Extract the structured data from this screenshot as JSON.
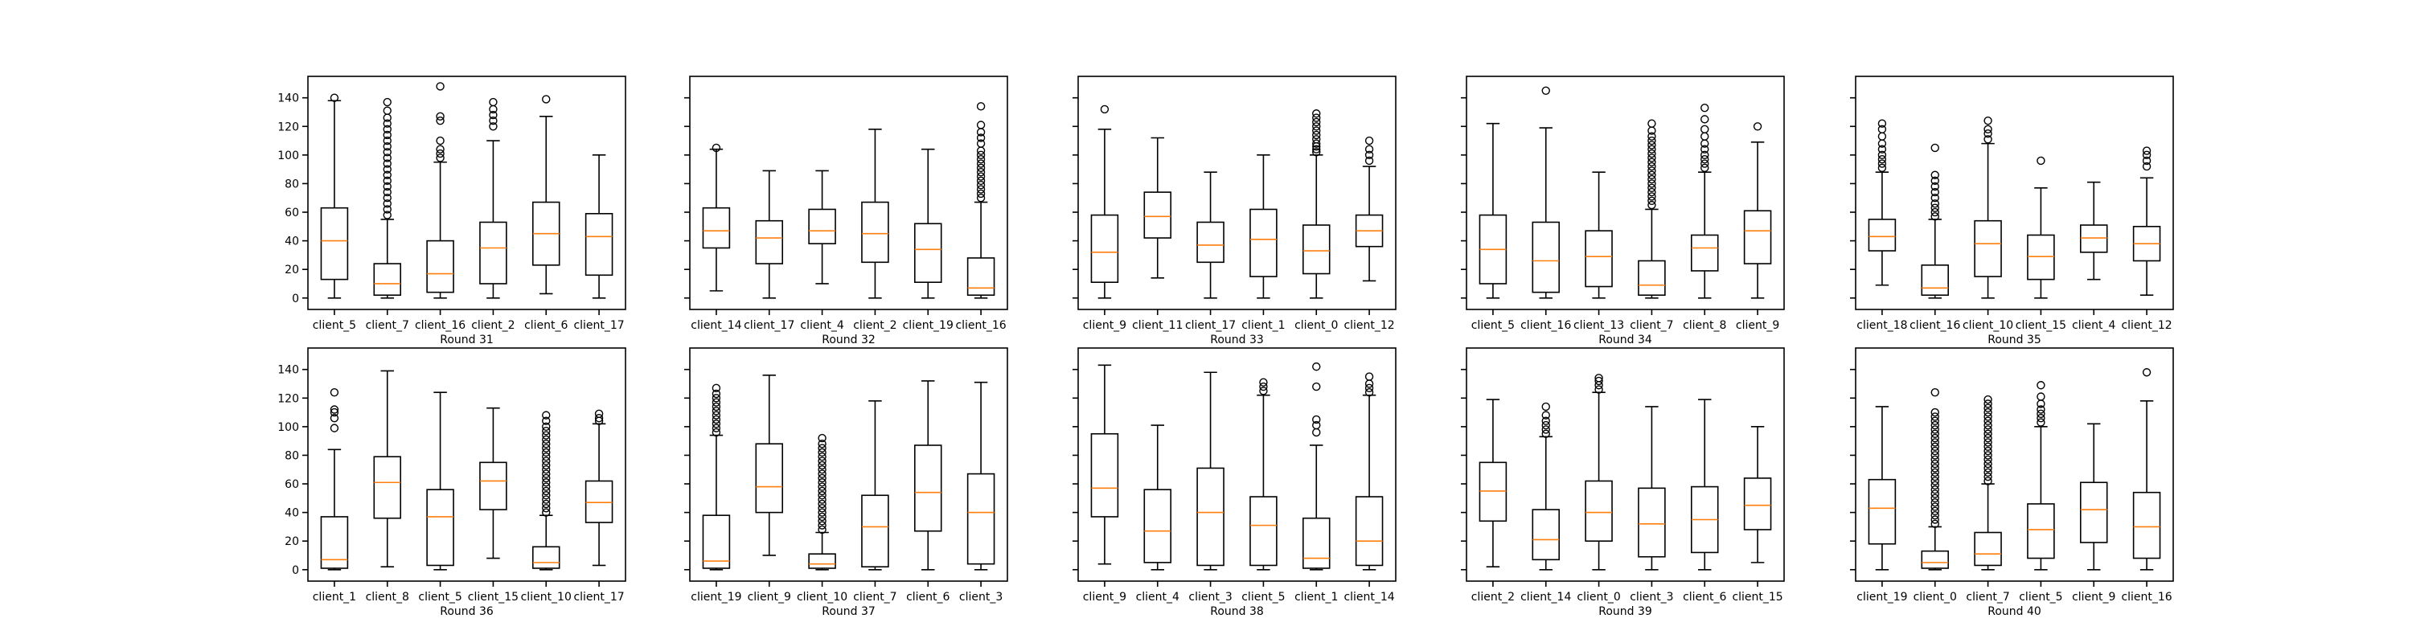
{
  "chart_data": [
    {
      "type": "box",
      "xlabel": "Round 31",
      "ylim": [
        -8,
        155
      ],
      "yticks": [
        0,
        20,
        40,
        60,
        80,
        100,
        120,
        140
      ],
      "show_yticklabels": true,
      "categories": [
        "client_5",
        "client_7",
        "client_16",
        "client_2",
        "client_6",
        "client_17"
      ],
      "boxes": [
        {
          "min": 0,
          "q1": 13,
          "median": 40,
          "q3": 63,
          "max": 138,
          "fliers": [
            140
          ]
        },
        {
          "min": 0,
          "q1": 2,
          "median": 10,
          "q3": 24,
          "max": 55,
          "fliers": [
            58,
            62,
            66,
            70,
            74,
            78,
            82,
            86,
            90,
            94,
            98,
            102,
            106,
            110,
            114,
            118,
            122,
            126,
            131,
            137
          ]
        },
        {
          "min": 0,
          "q1": 4,
          "median": 17,
          "q3": 40,
          "max": 95,
          "fliers": [
            98,
            101,
            104,
            110,
            124,
            127,
            148
          ]
        },
        {
          "min": 0,
          "q1": 10,
          "median": 35,
          "q3": 53,
          "max": 110,
          "fliers": [
            120,
            124,
            128,
            132,
            137
          ]
        },
        {
          "min": 3,
          "q1": 23,
          "median": 45,
          "q3": 67,
          "max": 127,
          "fliers": [
            139
          ]
        },
        {
          "min": 0,
          "q1": 16,
          "median": 43,
          "q3": 59,
          "max": 100,
          "fliers": []
        }
      ]
    },
    {
      "type": "box",
      "xlabel": "Round 32",
      "ylim": [
        -8,
        155
      ],
      "yticks": [
        0,
        20,
        40,
        60,
        80,
        100,
        120,
        140
      ],
      "show_yticklabels": false,
      "categories": [
        "client_14",
        "client_17",
        "client_4",
        "client_2",
        "client_19",
        "client_16"
      ],
      "boxes": [
        {
          "min": 5,
          "q1": 35,
          "median": 47,
          "q3": 63,
          "max": 104,
          "fliers": [
            105
          ]
        },
        {
          "min": 0,
          "q1": 24,
          "median": 42,
          "q3": 54,
          "max": 89,
          "fliers": []
        },
        {
          "min": 10,
          "q1": 38,
          "median": 47,
          "q3": 62,
          "max": 89,
          "fliers": []
        },
        {
          "min": 0,
          "q1": 25,
          "median": 45,
          "q3": 67,
          "max": 118,
          "fliers": []
        },
        {
          "min": 0,
          "q1": 11,
          "median": 34,
          "q3": 52,
          "max": 104,
          "fliers": []
        },
        {
          "min": 0,
          "q1": 2,
          "median": 7,
          "q3": 28,
          "max": 67,
          "fliers": [
            70,
            73,
            76,
            79,
            82,
            85,
            88,
            91,
            94,
            97,
            100,
            103,
            108,
            112,
            116,
            121,
            134
          ]
        }
      ]
    },
    {
      "type": "box",
      "xlabel": "Round 33",
      "ylim": [
        -8,
        155
      ],
      "yticks": [
        0,
        20,
        40,
        60,
        80,
        100,
        120,
        140
      ],
      "show_yticklabels": false,
      "categories": [
        "client_9",
        "client_11",
        "client_17",
        "client_1",
        "client_0",
        "client_12"
      ],
      "boxes": [
        {
          "min": 0,
          "q1": 11,
          "median": 32,
          "q3": 58,
          "max": 118,
          "fliers": [
            132
          ]
        },
        {
          "min": 14,
          "q1": 42,
          "median": 57,
          "q3": 74,
          "max": 112,
          "fliers": []
        },
        {
          "min": 0,
          "q1": 25,
          "median": 37,
          "q3": 53,
          "max": 88,
          "fliers": []
        },
        {
          "min": 0,
          "q1": 15,
          "median": 41,
          "q3": 62,
          "max": 100,
          "fliers": []
        },
        {
          "min": 0,
          "q1": 17,
          "median": 33,
          "q3": 51,
          "max": 100,
          "fliers": [
            102,
            104,
            106,
            108,
            111,
            114,
            117,
            120,
            123,
            126,
            129
          ]
        },
        {
          "min": 12,
          "q1": 36,
          "median": 47,
          "q3": 58,
          "max": 92,
          "fliers": [
            96,
            100,
            104,
            110
          ]
        }
      ]
    },
    {
      "type": "box",
      "xlabel": "Round 34",
      "ylim": [
        -8,
        155
      ],
      "yticks": [
        0,
        20,
        40,
        60,
        80,
        100,
        120,
        140
      ],
      "show_yticklabels": false,
      "categories": [
        "client_5",
        "client_16",
        "client_13",
        "client_7",
        "client_8",
        "client_9"
      ],
      "boxes": [
        {
          "min": 0,
          "q1": 10,
          "median": 34,
          "q3": 58,
          "max": 122,
          "fliers": []
        },
        {
          "min": 0,
          "q1": 4,
          "median": 26,
          "q3": 53,
          "max": 119,
          "fliers": [
            145
          ]
        },
        {
          "min": 0,
          "q1": 8,
          "median": 29,
          "q3": 47,
          "max": 88,
          "fliers": []
        },
        {
          "min": 0,
          "q1": 2,
          "median": 9,
          "q3": 26,
          "max": 62,
          "fliers": [
            65,
            68,
            71,
            74,
            77,
            80,
            83,
            86,
            89,
            92,
            95,
            98,
            101,
            104,
            107,
            110,
            113,
            117,
            122
          ]
        },
        {
          "min": 0,
          "q1": 19,
          "median": 35,
          "q3": 44,
          "max": 88,
          "fliers": [
            91,
            94,
            97,
            100,
            104,
            108,
            113,
            118,
            125,
            133
          ]
        },
        {
          "min": 0,
          "q1": 24,
          "median": 47,
          "q3": 61,
          "max": 109,
          "fliers": [
            120
          ]
        }
      ]
    },
    {
      "type": "box",
      "xlabel": "Round 35",
      "ylim": [
        -8,
        155
      ],
      "yticks": [
        0,
        20,
        40,
        60,
        80,
        100,
        120,
        140
      ],
      "show_yticklabels": false,
      "categories": [
        "client_18",
        "client_16",
        "client_10",
        "client_15",
        "client_4",
        "client_12"
      ],
      "boxes": [
        {
          "min": 9,
          "q1": 33,
          "median": 43,
          "q3": 55,
          "max": 88,
          "fliers": [
            91,
            94,
            97,
            100,
            104,
            108,
            113,
            118,
            122
          ]
        },
        {
          "min": 0,
          "q1": 2,
          "median": 7,
          "q3": 23,
          "max": 55,
          "fliers": [
            57,
            60,
            63,
            66,
            70,
            74,
            78,
            82,
            86,
            105
          ]
        },
        {
          "min": 0,
          "q1": 15,
          "median": 38,
          "q3": 54,
          "max": 108,
          "fliers": [
            111,
            115,
            118,
            124
          ]
        },
        {
          "min": 0,
          "q1": 13,
          "median": 29,
          "q3": 44,
          "max": 77,
          "fliers": [
            96
          ]
        },
        {
          "min": 13,
          "q1": 32,
          "median": 42,
          "q3": 51,
          "max": 81,
          "fliers": []
        },
        {
          "min": 2,
          "q1": 26,
          "median": 38,
          "q3": 50,
          "max": 84,
          "fliers": [
            92,
            96,
            100,
            103
          ]
        }
      ]
    },
    {
      "type": "box",
      "xlabel": "Round 36",
      "ylim": [
        -8,
        155
      ],
      "yticks": [
        0,
        20,
        40,
        60,
        80,
        100,
        120,
        140
      ],
      "show_yticklabels": true,
      "categories": [
        "client_1",
        "client_8",
        "client_5",
        "client_15",
        "client_10",
        "client_17"
      ],
      "boxes": [
        {
          "min": 0,
          "q1": 1,
          "median": 7,
          "q3": 37,
          "max": 84,
          "fliers": [
            99,
            106,
            110,
            112,
            124
          ]
        },
        {
          "min": 2,
          "q1": 36,
          "median": 61,
          "q3": 79,
          "max": 139,
          "fliers": []
        },
        {
          "min": 0,
          "q1": 3,
          "median": 37,
          "q3": 56,
          "max": 124,
          "fliers": []
        },
        {
          "min": 8,
          "q1": 42,
          "median": 62,
          "q3": 75,
          "max": 113,
          "fliers": []
        },
        {
          "min": 0,
          "q1": 1,
          "median": 5,
          "q3": 16,
          "max": 38,
          "fliers": [
            40,
            43,
            46,
            49,
            52,
            55,
            58,
            61,
            64,
            67,
            70,
            73,
            76,
            79,
            82,
            85,
            88,
            91,
            94,
            97,
            100,
            104,
            108
          ]
        },
        {
          "min": 3,
          "q1": 33,
          "median": 47,
          "q3": 62,
          "max": 102,
          "fliers": [
            104,
            106,
            109
          ]
        }
      ]
    },
    {
      "type": "box",
      "xlabel": "Round 37",
      "ylim": [
        -8,
        155
      ],
      "yticks": [
        0,
        20,
        40,
        60,
        80,
        100,
        120,
        140
      ],
      "show_yticklabels": false,
      "categories": [
        "client_19",
        "client_9",
        "client_10",
        "client_7",
        "client_6",
        "client_3"
      ],
      "boxes": [
        {
          "min": 0,
          "q1": 1,
          "median": 6,
          "q3": 38,
          "max": 94,
          "fliers": [
            96,
            99,
            102,
            105,
            108,
            111,
            114,
            117,
            120,
            123,
            127
          ]
        },
        {
          "min": 10,
          "q1": 40,
          "median": 58,
          "q3": 88,
          "max": 136,
          "fliers": []
        },
        {
          "min": 0,
          "q1": 1,
          "median": 4,
          "q3": 11,
          "max": 26,
          "fliers": [
            28,
            31,
            34,
            37,
            40,
            43,
            46,
            49,
            52,
            55,
            58,
            61,
            64,
            67,
            70,
            73,
            76,
            79,
            82,
            85,
            88,
            92
          ]
        },
        {
          "min": 0,
          "q1": 2,
          "median": 30,
          "q3": 52,
          "max": 118,
          "fliers": []
        },
        {
          "min": 0,
          "q1": 27,
          "median": 54,
          "q3": 87,
          "max": 132,
          "fliers": []
        },
        {
          "min": 0,
          "q1": 4,
          "median": 40,
          "q3": 67,
          "max": 131,
          "fliers": []
        }
      ]
    },
    {
      "type": "box",
      "xlabel": "Round 38",
      "ylim": [
        -8,
        155
      ],
      "yticks": [
        0,
        20,
        40,
        60,
        80,
        100,
        120,
        140
      ],
      "show_yticklabels": false,
      "categories": [
        "client_9",
        "client_4",
        "client_3",
        "client_5",
        "client_1",
        "client_14"
      ],
      "boxes": [
        {
          "min": 4,
          "q1": 37,
          "median": 57,
          "q3": 95,
          "max": 143,
          "fliers": []
        },
        {
          "min": 0,
          "q1": 5,
          "median": 27,
          "q3": 56,
          "max": 101,
          "fliers": []
        },
        {
          "min": 0,
          "q1": 3,
          "median": 40,
          "q3": 71,
          "max": 138,
          "fliers": []
        },
        {
          "min": 0,
          "q1": 3,
          "median": 31,
          "q3": 51,
          "max": 122,
          "fliers": [
            125,
            128,
            131
          ]
        },
        {
          "min": 0,
          "q1": 1,
          "median": 8,
          "q3": 36,
          "max": 87,
          "fliers": [
            96,
            101,
            105,
            128,
            142
          ]
        },
        {
          "min": 0,
          "q1": 3,
          "median": 20,
          "q3": 51,
          "max": 122,
          "fliers": [
            124,
            127,
            130,
            135
          ]
        }
      ]
    },
    {
      "type": "box",
      "xlabel": "Round 39",
      "ylim": [
        -8,
        155
      ],
      "yticks": [
        0,
        20,
        40,
        60,
        80,
        100,
        120,
        140
      ],
      "show_yticklabels": false,
      "categories": [
        "client_2",
        "client_14",
        "client_0",
        "client_3",
        "client_6",
        "client_15"
      ],
      "boxes": [
        {
          "min": 2,
          "q1": 34,
          "median": 55,
          "q3": 75,
          "max": 119,
          "fliers": []
        },
        {
          "min": 0,
          "q1": 7,
          "median": 21,
          "q3": 42,
          "max": 93,
          "fliers": [
            95,
            98,
            101,
            104,
            108,
            114
          ]
        },
        {
          "min": 0,
          "q1": 20,
          "median": 40,
          "q3": 62,
          "max": 124,
          "fliers": [
            126,
            129,
            132,
            134
          ]
        },
        {
          "min": 0,
          "q1": 9,
          "median": 32,
          "q3": 57,
          "max": 114,
          "fliers": []
        },
        {
          "min": 0,
          "q1": 12,
          "median": 35,
          "q3": 58,
          "max": 119,
          "fliers": []
        },
        {
          "min": 5,
          "q1": 28,
          "median": 45,
          "q3": 64,
          "max": 100,
          "fliers": []
        }
      ]
    },
    {
      "type": "box",
      "xlabel": "Round 40",
      "ylim": [
        -8,
        155
      ],
      "yticks": [
        0,
        20,
        40,
        60,
        80,
        100,
        120,
        140
      ],
      "show_yticklabels": false,
      "categories": [
        "client_19",
        "client_0",
        "client_7",
        "client_5",
        "client_9",
        "client_16"
      ],
      "boxes": [
        {
          "min": 0,
          "q1": 18,
          "median": 43,
          "q3": 63,
          "max": 114,
          "fliers": []
        },
        {
          "min": 0,
          "q1": 1,
          "median": 5,
          "q3": 13,
          "max": 30,
          "fliers": [
            32,
            35,
            38,
            41,
            44,
            47,
            50,
            53,
            56,
            59,
            62,
            65,
            68,
            71,
            74,
            77,
            80,
            83,
            86,
            89,
            92,
            95,
            98,
            101,
            104,
            107,
            110,
            124
          ]
        },
        {
          "min": 0,
          "q1": 3,
          "median": 11,
          "q3": 26,
          "max": 60,
          "fliers": [
            62,
            65,
            68,
            71,
            74,
            77,
            80,
            83,
            86,
            89,
            92,
            95,
            98,
            101,
            104,
            107,
            110,
            113,
            116,
            119
          ]
        },
        {
          "min": 0,
          "q1": 8,
          "median": 28,
          "q3": 46,
          "max": 100,
          "fliers": [
            103,
            106,
            109,
            112,
            116,
            121,
            129
          ]
        },
        {
          "min": 0,
          "q1": 19,
          "median": 42,
          "q3": 61,
          "max": 102,
          "fliers": []
        },
        {
          "min": 0,
          "q1": 8,
          "median": 30,
          "q3": 54,
          "max": 118,
          "fliers": [
            138
          ]
        }
      ]
    }
  ]
}
